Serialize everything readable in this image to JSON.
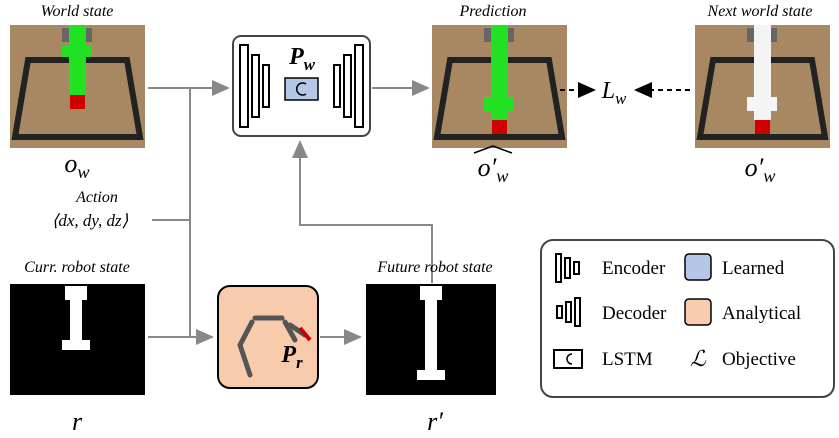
{
  "labels": {
    "world_state": "World state",
    "prediction": "Prediction",
    "next_world_state": "Next world state",
    "action": "Action",
    "action_vector": "⟨dx, dy, dz⟩",
    "curr_robot_state": "Curr. robot state",
    "future_robot_state": "Future robot state"
  },
  "symbols": {
    "o_w": {
      "base": "o",
      "sub": "w"
    },
    "o_w_hat": {
      "base": "o′",
      "sub": "w"
    },
    "o_w_next": {
      "base": "o′",
      "sub": "w"
    },
    "r": "r",
    "r_next": "r′",
    "P_w": {
      "base": "P",
      "sub": "w"
    },
    "P_r": {
      "base": "P",
      "sub": "r"
    },
    "L_w": {
      "base": "L",
      "sub": "w"
    }
  },
  "legend": {
    "encoder": "Encoder",
    "learned": "Learned",
    "decoder": "Decoder",
    "analytical": "Analytical",
    "lstm": "LSTM",
    "objective_symbol": "ℒ",
    "objective": "Objective"
  }
}
